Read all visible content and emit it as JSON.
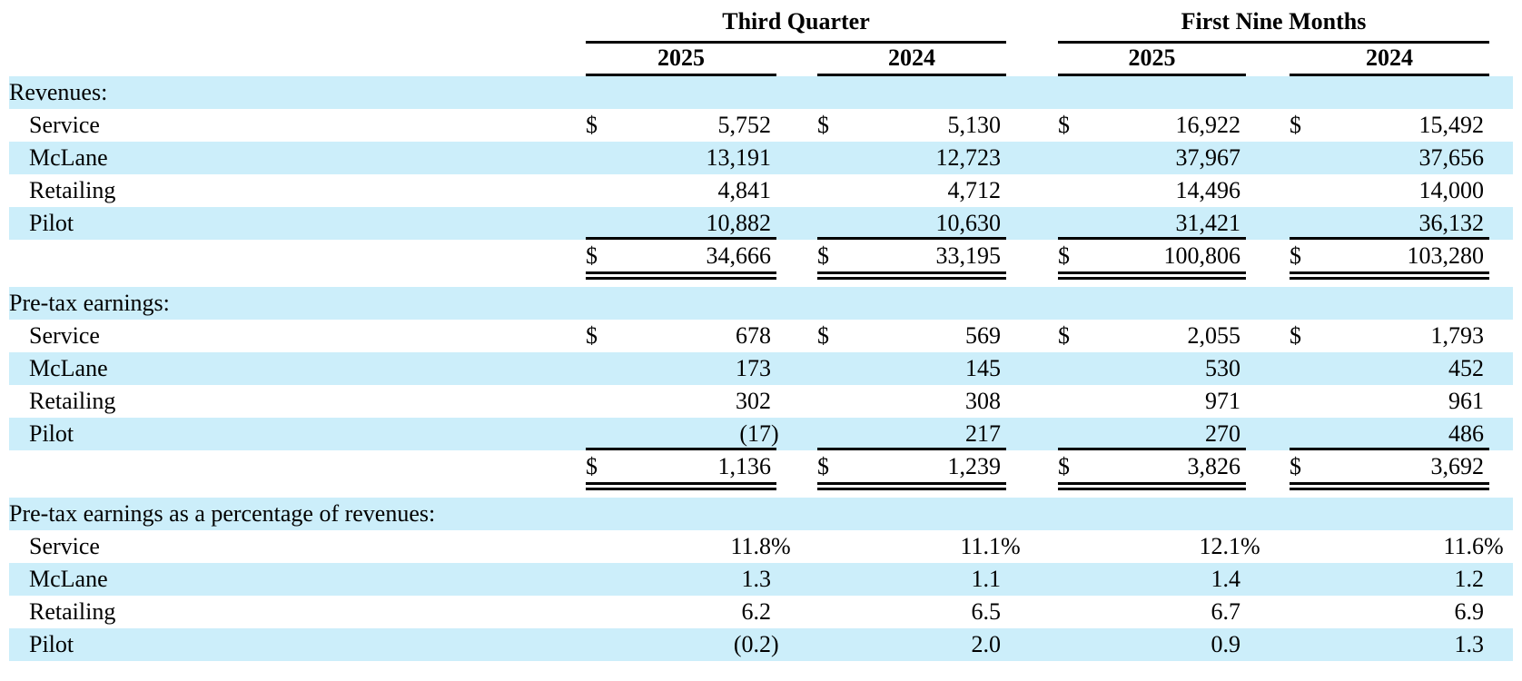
{
  "colors": {
    "stripe": "#cceefa",
    "text": "#000000",
    "rule": "#000000",
    "background": "#ffffff"
  },
  "table": {
    "period_groups": [
      {
        "label": "Third Quarter",
        "years": [
          "2025",
          "2024"
        ]
      },
      {
        "label": "First Nine Months",
        "years": [
          "2025",
          "2024"
        ]
      }
    ],
    "rows": [
      {
        "type": "section",
        "label": "Revenues:"
      },
      {
        "type": "data",
        "label": "Service",
        "dollar": true,
        "values": [
          "5,752",
          "5,130",
          "16,922",
          "15,492"
        ]
      },
      {
        "type": "data",
        "label": "McLane",
        "values": [
          "13,191",
          "12,723",
          "37,967",
          "37,656"
        ]
      },
      {
        "type": "data",
        "label": "Retailing",
        "values": [
          "4,841",
          "4,712",
          "14,496",
          "14,000"
        ]
      },
      {
        "type": "data",
        "label": "Pilot",
        "underline": true,
        "values": [
          "10,882",
          "10,630",
          "31,421",
          "36,132"
        ]
      },
      {
        "type": "total",
        "dollar": true,
        "values": [
          "34,666",
          "33,195",
          "100,806",
          "103,280"
        ]
      },
      {
        "type": "section",
        "label": "Pre-tax earnings:"
      },
      {
        "type": "data",
        "label": "Service",
        "dollar": true,
        "values": [
          "678",
          "569",
          "2,055",
          "1,793"
        ]
      },
      {
        "type": "data",
        "label": "McLane",
        "values": [
          "173",
          "145",
          "530",
          "452"
        ]
      },
      {
        "type": "data",
        "label": "Retailing",
        "values": [
          "302",
          "308",
          "971",
          "961"
        ]
      },
      {
        "type": "data",
        "label": "Pilot",
        "underline": true,
        "values": [
          "(17)",
          "217",
          "270",
          "486"
        ]
      },
      {
        "type": "total",
        "dollar": true,
        "values": [
          "1,136",
          "1,239",
          "3,826",
          "3,692"
        ]
      },
      {
        "type": "section",
        "label": "Pre-tax earnings as a percentage of revenues:"
      },
      {
        "type": "data",
        "label": "Service",
        "values": [
          "11.8%",
          "11.1%",
          "12.1%",
          "11.6%"
        ]
      },
      {
        "type": "data",
        "label": "McLane",
        "values": [
          "1.3",
          "1.1",
          "1.4",
          "1.2"
        ]
      },
      {
        "type": "data",
        "label": "Retailing",
        "values": [
          "6.2",
          "6.5",
          "6.7",
          "6.9"
        ]
      },
      {
        "type": "data",
        "label": "Pilot",
        "values": [
          "(0.2)",
          "2.0",
          "0.9",
          "1.3"
        ]
      }
    ]
  }
}
